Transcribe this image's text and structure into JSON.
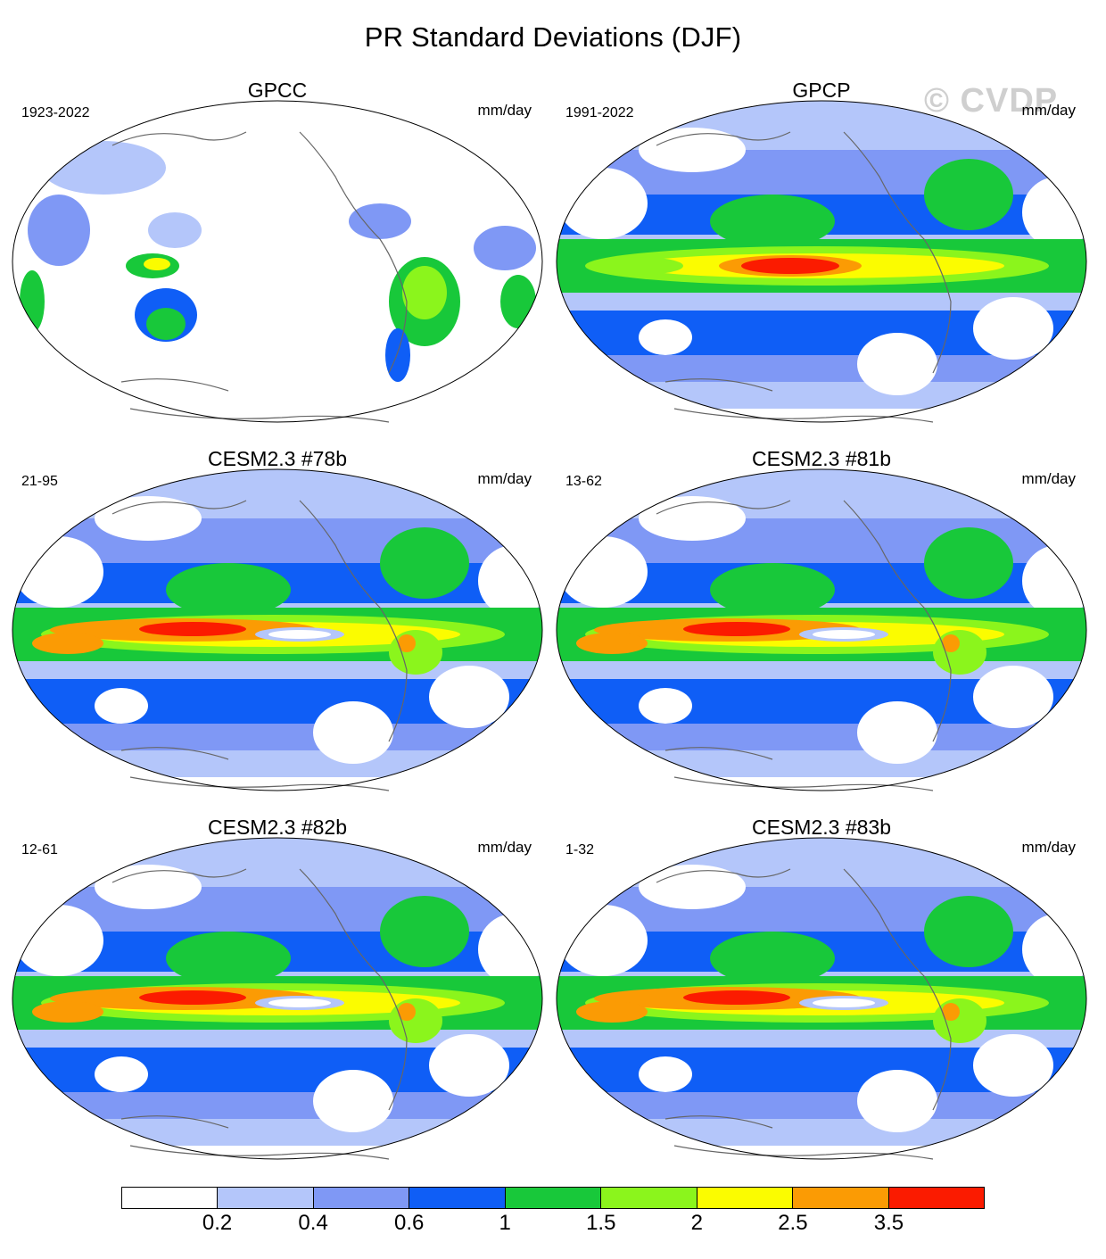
{
  "title": "PR Standard Deviations (DJF)",
  "watermark": "© CVDP",
  "units": "mm/day",
  "panels": [
    {
      "name": "GPCC",
      "period": "1923-2022",
      "style": "land"
    },
    {
      "name": "GPCP",
      "period": "1991-2022",
      "style": "obs"
    },
    {
      "name": "CESM2.3 #78b",
      "period": "21-95",
      "style": "model"
    },
    {
      "name": "CESM2.3 #81b",
      "period": "13-62",
      "style": "model"
    },
    {
      "name": "CESM2.3 #82b",
      "period": "12-61",
      "style": "model"
    },
    {
      "name": "CESM2.3 #83b",
      "period": "1-32",
      "style": "model"
    }
  ],
  "colorbar": {
    "colors": [
      "#ffffff",
      "#b4c6fa",
      "#7f98f5",
      "#0f5ef6",
      "#18c83a",
      "#8bf51c",
      "#fbfc00",
      "#fb9b04",
      "#fb1b00"
    ],
    "labels": [
      "0.2",
      "0.4",
      "0.6",
      "1",
      "1.5",
      "2",
      "2.5",
      "3.5"
    ]
  }
}
